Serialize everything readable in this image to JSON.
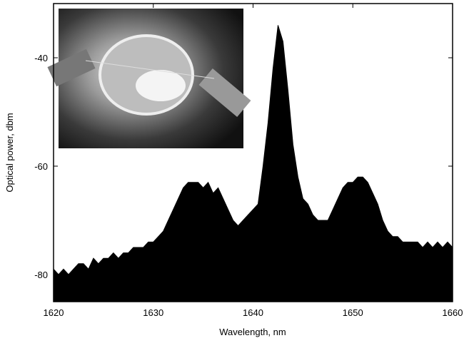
{
  "chart_data": {
    "type": "area",
    "xlabel": "Wavelength, nm",
    "ylabel": "Optical power, dbm",
    "xlim": [
      1620,
      1660
    ],
    "xticks": [
      1620,
      1630,
      1640,
      1650,
      1660
    ],
    "ylim": [
      -85,
      -30
    ],
    "yticks": [
      -40,
      -60,
      -80
    ],
    "color": "#000000",
    "x": [
      1620,
      1620.5,
      1621,
      1621.5,
      1622,
      1622.5,
      1623,
      1623.5,
      1624,
      1624.5,
      1625,
      1625.5,
      1626,
      1626.5,
      1627,
      1627.5,
      1628,
      1628.5,
      1629,
      1629.5,
      1630,
      1630.5,
      1631,
      1631.5,
      1632,
      1632.5,
      1633,
      1633.5,
      1634,
      1634.5,
      1635,
      1635.5,
      1636,
      1636.5,
      1637,
      1637.5,
      1638,
      1638.5,
      1639,
      1639.5,
      1640,
      1640.5,
      1641,
      1641.5,
      1642,
      1642.5,
      1643,
      1643.5,
      1644,
      1644.5,
      1645,
      1645.5,
      1646,
      1646.5,
      1647,
      1647.5,
      1648,
      1648.5,
      1649,
      1649.5,
      1650,
      1650.5,
      1651,
      1651.5,
      1652,
      1652.5,
      1653,
      1653.5,
      1654,
      1654.5,
      1655,
      1655.5,
      1656,
      1656.5,
      1657,
      1657.5,
      1658,
      1658.5,
      1659,
      1659.5,
      1660
    ],
    "values": [
      -79,
      -80,
      -79,
      -80,
      -79,
      -78,
      -78,
      -79,
      -77,
      -78,
      -77,
      -77,
      -76,
      -77,
      -76,
      -76,
      -75,
      -75,
      -75,
      -74,
      -74,
      -73,
      -72,
      -70,
      -68,
      -66,
      -64,
      -63,
      -63,
      -63,
      -64,
      -63,
      -65,
      -64,
      -66,
      -68,
      -70,
      -71,
      -70,
      -69,
      -68,
      -67,
      -60,
      -52,
      -42,
      -34,
      -37,
      -46,
      -56,
      -62,
      -66,
      -67,
      -69,
      -70,
      -70,
      -70,
      -68,
      -66,
      -64,
      -63,
      -63,
      -62,
      -62,
      -63,
      -65,
      -67,
      -70,
      -72,
      -73,
      -73,
      -74,
      -74,
      -74,
      -74,
      -75,
      -74,
      -75,
      -74,
      -75,
      -74,
      -75
    ]
  }
}
